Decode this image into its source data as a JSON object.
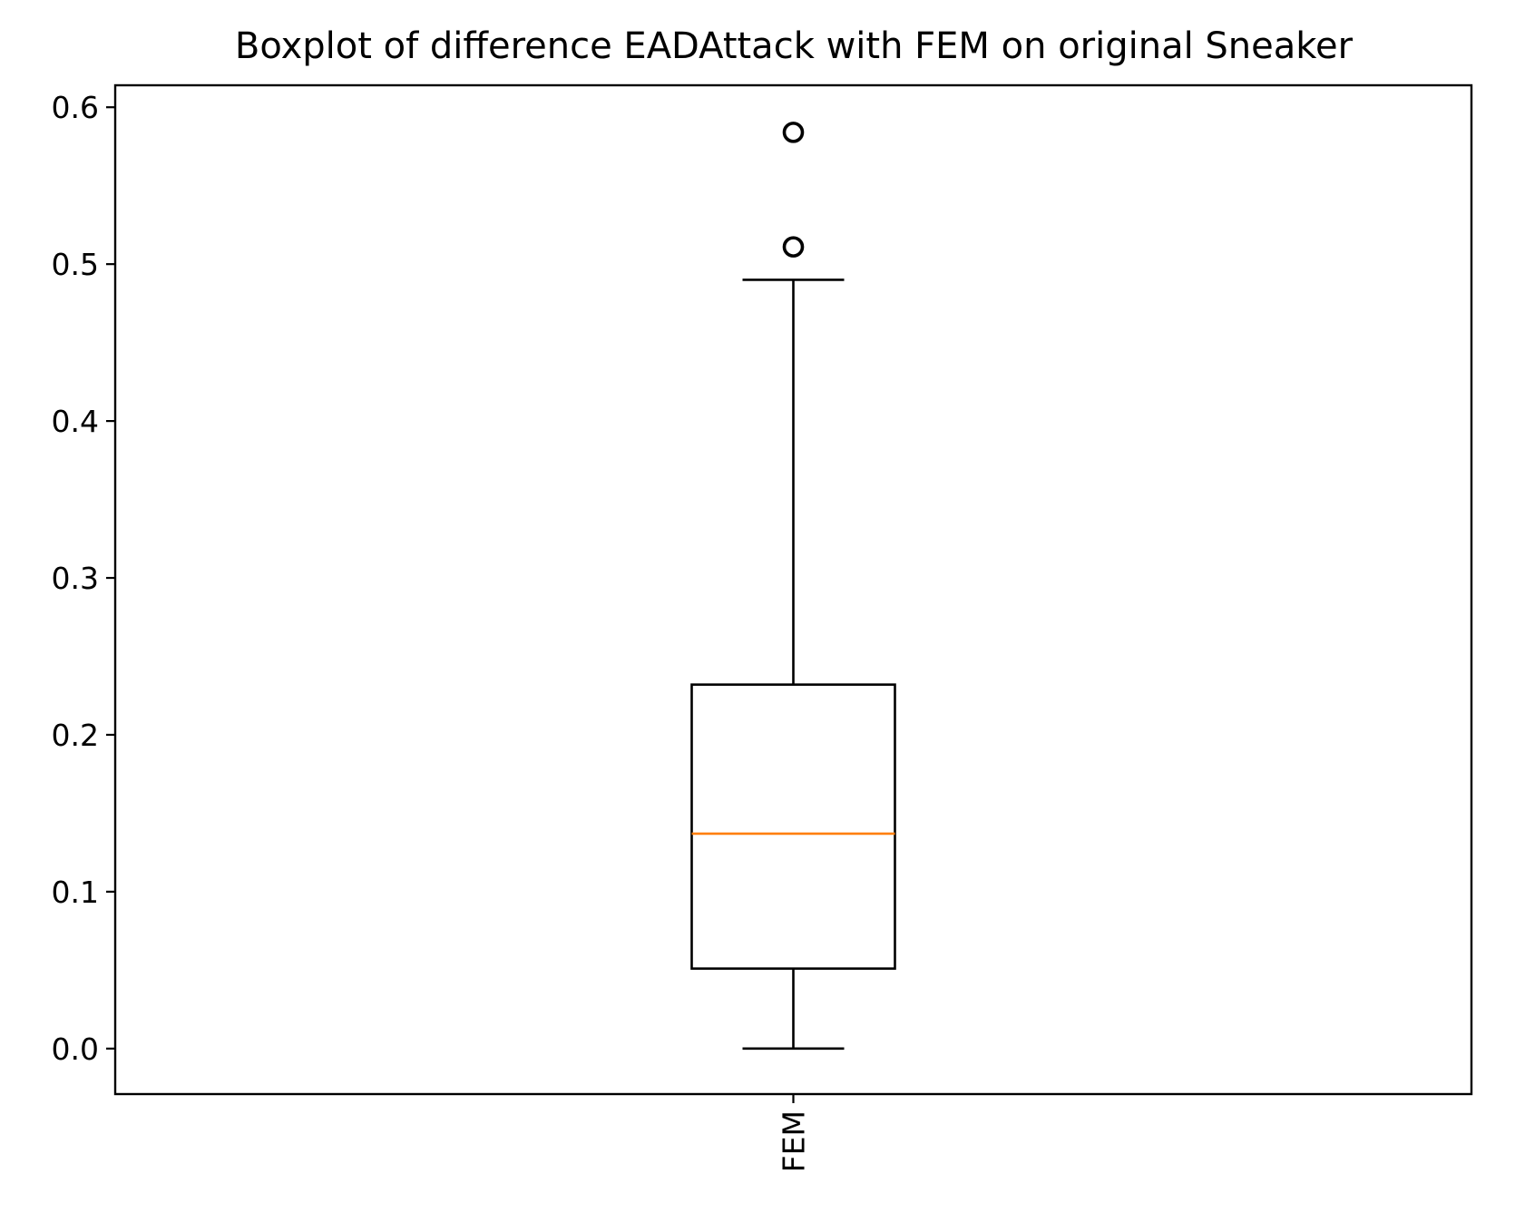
{
  "chart_data": {
    "type": "box",
    "title": "Boxplot of difference EADAttack with FEM on original Sneaker",
    "xlabel": "",
    "ylabel": "",
    "categories": [
      "FEM"
    ],
    "boxes": [
      {
        "label": "FEM",
        "whisker_low": 0.0,
        "q1": 0.051,
        "median": 0.137,
        "q3": 0.232,
        "whisker_high": 0.49,
        "outliers": [
          0.511,
          0.584
        ]
      }
    ],
    "ylim": [
      -0.029,
      0.614
    ],
    "yticks": [
      "0.0",
      "0.1",
      "0.2",
      "0.3",
      "0.4",
      "0.5",
      "0.6"
    ],
    "ytick_values": [
      0.0,
      0.1,
      0.2,
      0.3,
      0.4,
      0.5,
      0.6
    ],
    "x_tick_rotation": "vertical",
    "grid": false,
    "legend": "none",
    "colors": {
      "box": "#000000",
      "median": "#ff7f0e",
      "whisker": "#000000",
      "outlier": "#000000"
    }
  }
}
